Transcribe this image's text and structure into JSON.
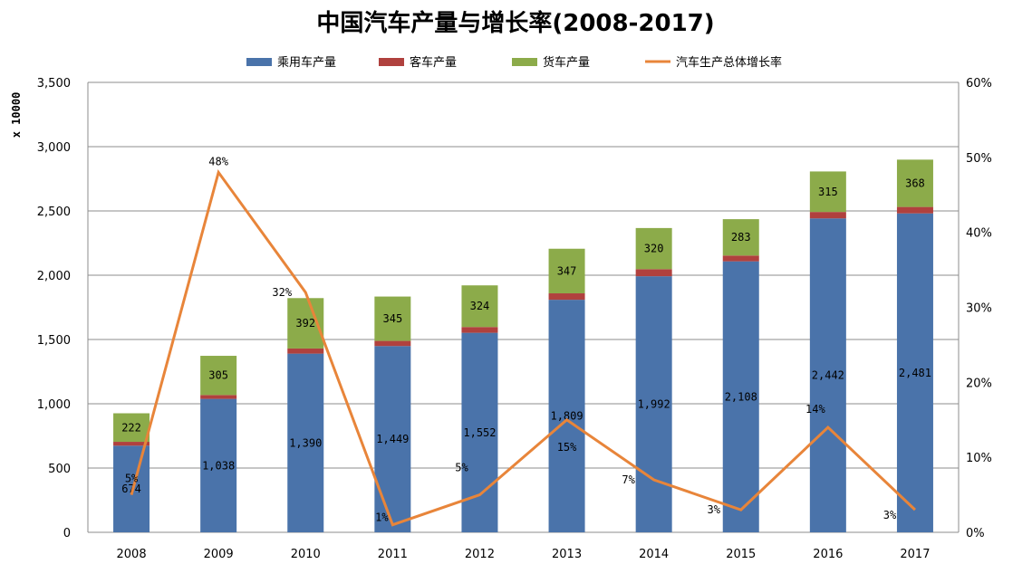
{
  "chart_data": {
    "type": "bar",
    "stacked": true,
    "title": "中国汽车产量与增长率(2008-2017)",
    "ylabel": "x 10000",
    "categories": [
      "2008",
      "2009",
      "2010",
      "2011",
      "2012",
      "2013",
      "2014",
      "2015",
      "2016",
      "2017"
    ],
    "ylim": [
      0,
      3500
    ],
    "y_ticks": [
      "0",
      "500",
      "1,000",
      "1,500",
      "2,000",
      "2,500",
      "3,000",
      "3,500"
    ],
    "y2lim": [
      0,
      60
    ],
    "y2_ticks": [
      "0%",
      "10%",
      "20%",
      "30%",
      "40%",
      "50%",
      "60%"
    ],
    "grid": true,
    "legend_position": "top",
    "series": [
      {
        "name": "乘用车产量",
        "color": "#4a73aa",
        "values": [
          674,
          1038,
          1390,
          1449,
          1552,
          1809,
          1992,
          2108,
          2442,
          2481
        ],
        "labels": [
          "674",
          "1,038",
          "1,390",
          "1,449",
          "1,552",
          "1,809",
          "1,992",
          "2,108",
          "2,442",
          "2,481"
        ]
      },
      {
        "name": "客车产量",
        "color": "#b0413e",
        "values": [
          30,
          30,
          40,
          40,
          45,
          50,
          55,
          45,
          50,
          50
        ]
      },
      {
        "name": "货车产量",
        "color": "#8cab4a",
        "values": [
          222,
          305,
          392,
          345,
          324,
          347,
          320,
          283,
          315,
          368
        ],
        "labels": [
          "222",
          "305",
          "392",
          "345",
          "324",
          "347",
          "320",
          "283",
          "315",
          "368"
        ]
      }
    ],
    "line_series": {
      "name": "汽车生产总体增长率",
      "color": "#e8853a",
      "axis": "right",
      "values": [
        5,
        48,
        32,
        1,
        5,
        15,
        7,
        3,
        14,
        3
      ],
      "labels": [
        "5%",
        "48%",
        "32%",
        "1%",
        "5%",
        "15%",
        "7%",
        "3%",
        "14%",
        "3%"
      ]
    }
  }
}
